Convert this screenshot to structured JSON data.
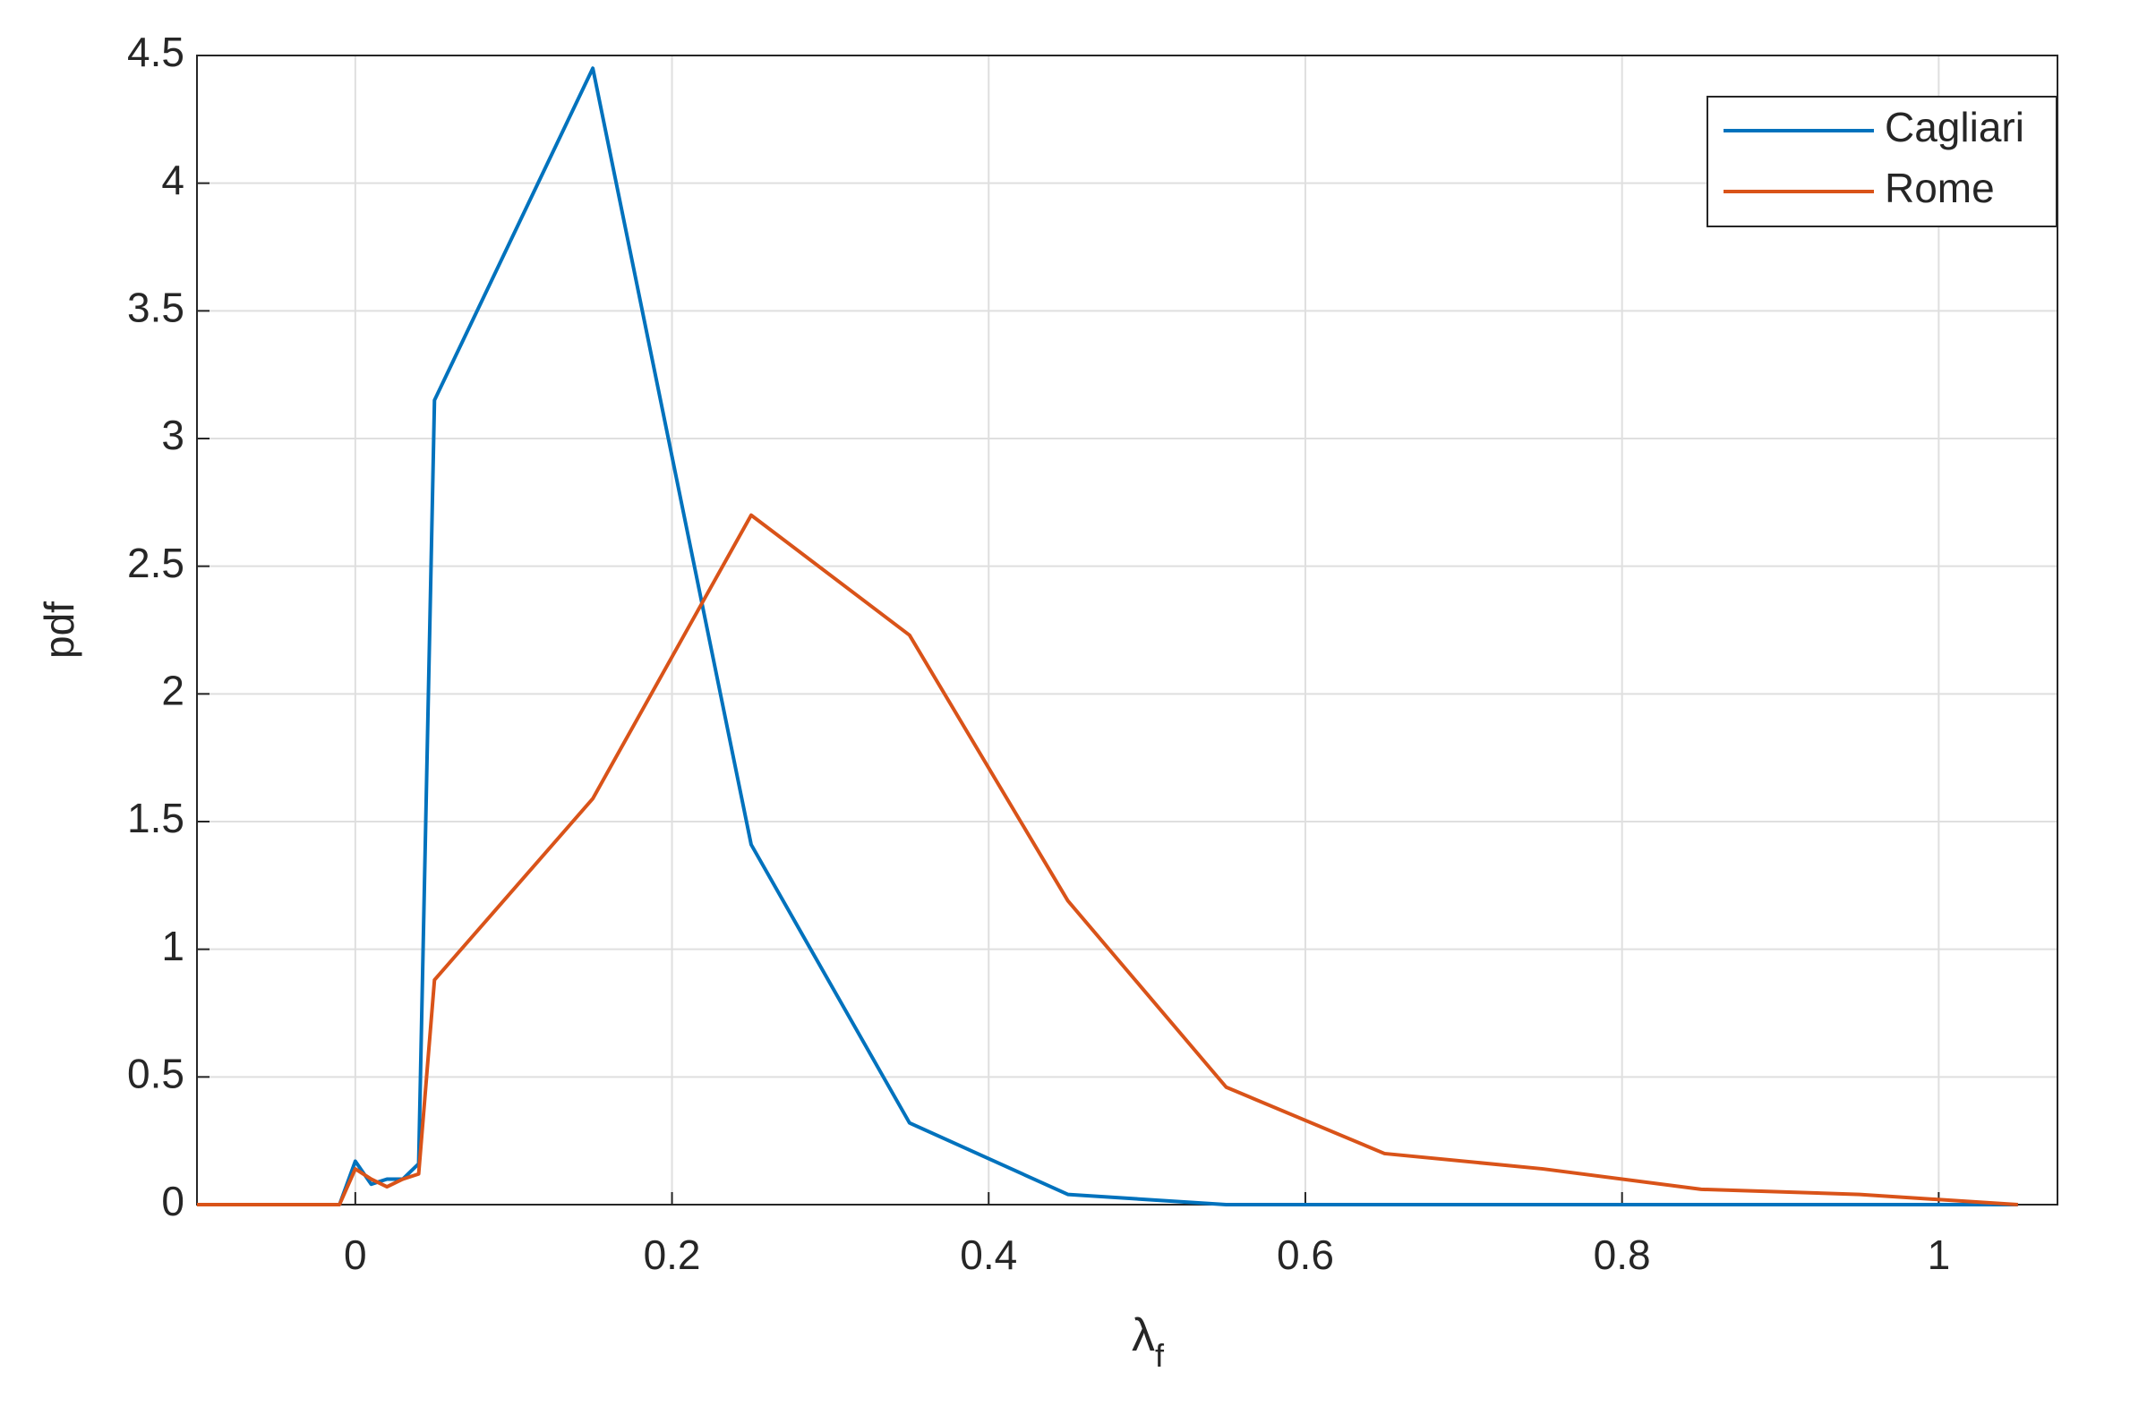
{
  "chart_data": {
    "type": "line",
    "xlabel": {
      "text": "λ",
      "subscript": "f"
    },
    "ylabel": "pdf",
    "x": [
      -0.1,
      -0.01,
      0,
      0.01,
      0.02,
      0.03,
      0.04,
      0.05,
      0.15,
      0.25,
      0.35,
      0.45,
      0.55,
      0.65,
      0.75,
      0.85,
      0.95,
      1.05
    ],
    "series": [
      {
        "name": "Cagliari",
        "color": "#0072bd",
        "values": [
          0,
          0,
          0.17,
          0.08,
          0.1,
          0.1,
          0.16,
          3.15,
          4.45,
          1.41,
          0.32,
          0.04,
          0,
          0,
          0,
          0,
          0,
          0
        ]
      },
      {
        "name": "Rome",
        "color": "#d95319",
        "values": [
          0,
          0,
          0.14,
          0.1,
          0.07,
          0.1,
          0.12,
          0.88,
          1.59,
          2.7,
          2.23,
          1.19,
          0.46,
          0.2,
          0.14,
          0.06,
          0.04,
          0
        ]
      }
    ],
    "xlim": [
      -0.1,
      1.075
    ],
    "ylim": [
      0,
      4.5
    ],
    "xticks": [
      0,
      0.2,
      0.4,
      0.6,
      0.8,
      1
    ],
    "yticks": [
      0,
      0.5,
      1,
      1.5,
      2,
      2.5,
      3,
      3.5,
      4,
      4.5
    ],
    "grid": true,
    "legend": "upper right"
  }
}
